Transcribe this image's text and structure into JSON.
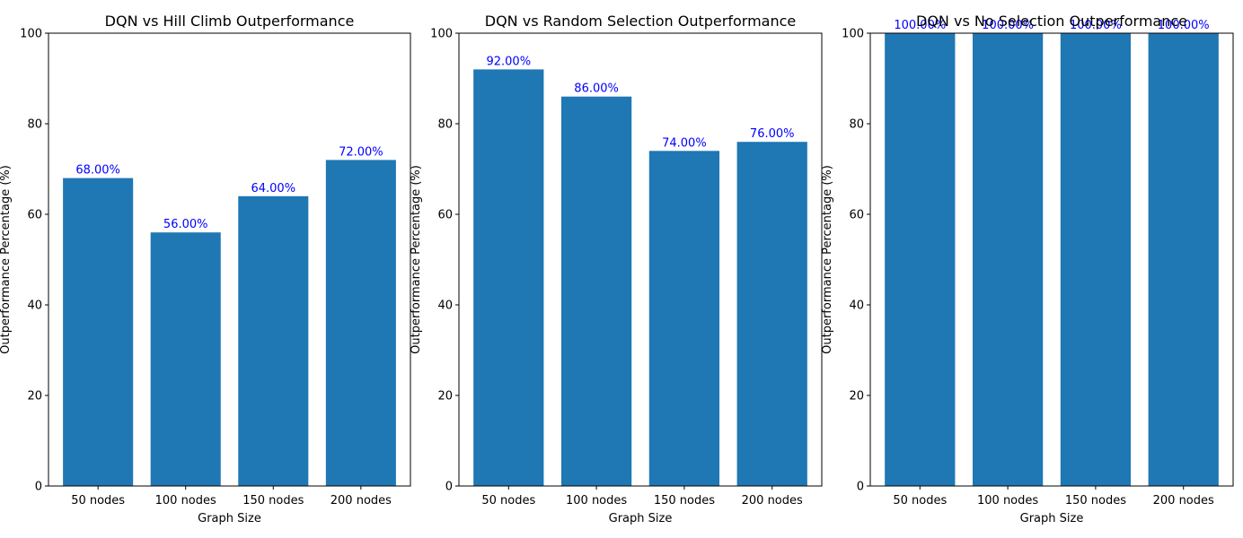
{
  "chart_data": [
    {
      "type": "bar",
      "title": "DQN vs Hill Climb Outperformance",
      "xlabel": "Graph Size",
      "ylabel": "Outperformance Percentage (%)",
      "categories": [
        "50 nodes",
        "100 nodes",
        "150 nodes",
        "200 nodes"
      ],
      "values": [
        68,
        56,
        64,
        72
      ],
      "value_labels": [
        "68.00%",
        "56.00%",
        "64.00%",
        "72.00%"
      ],
      "ylim": [
        0,
        100
      ],
      "yticks": [
        "0",
        "20",
        "40",
        "60",
        "80",
        "100"
      ],
      "grid": false,
      "colors": {
        "bar": "#1f77b4",
        "label": "#0000ff"
      }
    },
    {
      "type": "bar",
      "title": "DQN vs Random Selection Outperformance",
      "xlabel": "Graph Size",
      "ylabel": "Outperformance Percentage (%)",
      "categories": [
        "50 nodes",
        "100 nodes",
        "150 nodes",
        "200 nodes"
      ],
      "values": [
        92,
        86,
        74,
        76
      ],
      "value_labels": [
        "92.00%",
        "86.00%",
        "74.00%",
        "76.00%"
      ],
      "ylim": [
        0,
        100
      ],
      "yticks": [
        "0",
        "20",
        "40",
        "60",
        "80",
        "100"
      ],
      "grid": false,
      "colors": {
        "bar": "#1f77b4",
        "label": "#0000ff"
      }
    },
    {
      "type": "bar",
      "title": "DQN vs No Selection Outperformance",
      "xlabel": "Graph Size",
      "ylabel": "Outperformance Percentage (%)",
      "categories": [
        "50 nodes",
        "100 nodes",
        "150 nodes",
        "200 nodes"
      ],
      "values": [
        100,
        100,
        100,
        100
      ],
      "value_labels": [
        "100.00%",
        "100.00%",
        "100.00%",
        "100.00%"
      ],
      "ylim": [
        0,
        100
      ],
      "yticks": [
        "0",
        "20",
        "40",
        "60",
        "80",
        "100"
      ],
      "grid": false,
      "colors": {
        "bar": "#1f77b4",
        "label": "#0000ff"
      }
    }
  ]
}
